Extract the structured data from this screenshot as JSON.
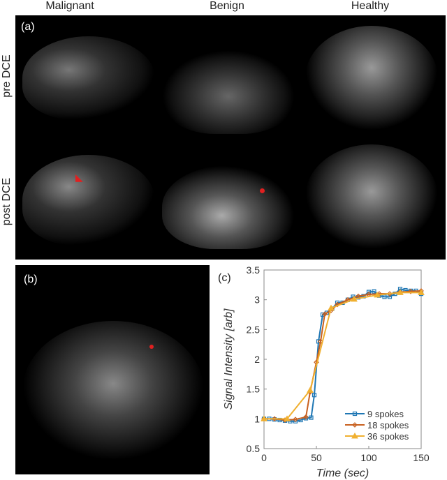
{
  "columns": [
    "Malignant",
    "Benign",
    "Healthy"
  ],
  "rows": [
    "pre DCE",
    "post DCE"
  ],
  "panels": {
    "a": "(a)",
    "b": "(b)",
    "c": "(c)"
  },
  "chart_data": {
    "type": "line",
    "title": "",
    "xlabel": "Time (sec)",
    "ylabel": "Signal Intensity [arb]",
    "xlim": [
      0,
      150
    ],
    "ylim": [
      0.5,
      3.5
    ],
    "xticks": [
      0,
      50,
      100,
      150
    ],
    "yticks": [
      0.5,
      1,
      1.5,
      2,
      2.5,
      3,
      3.5
    ],
    "legend_position": "bottom-right",
    "series": [
      {
        "name": "9 spokes",
        "color": "#1f77b4",
        "marker": "square",
        "x": [
          0,
          5,
          10,
          15,
          20,
          25,
          30,
          35,
          40,
          45,
          48,
          52,
          56,
          60,
          65,
          70,
          75,
          80,
          85,
          90,
          95,
          100,
          105,
          110,
          115,
          120,
          125,
          130,
          135,
          140,
          145,
          150
        ],
        "y": [
          1.0,
          1.0,
          0.99,
          0.98,
          0.97,
          0.96,
          0.96,
          0.98,
          1.01,
          1.02,
          1.4,
          2.3,
          2.75,
          2.78,
          2.85,
          2.95,
          2.95,
          3.0,
          3.05,
          3.04,
          3.06,
          3.13,
          3.14,
          3.07,
          3.05,
          3.05,
          3.1,
          3.18,
          3.16,
          3.15,
          3.15,
          3.1
        ]
      },
      {
        "name": "18 spokes",
        "color": "#c8601f",
        "marker": "diamond",
        "x": [
          0,
          10,
          20,
          30,
          40,
          44,
          50,
          54,
          58,
          64,
          70,
          80,
          90,
          100,
          110,
          120,
          130,
          140,
          150
        ],
        "y": [
          1.0,
          1.0,
          0.98,
          0.99,
          1.03,
          1.45,
          1.95,
          2.3,
          2.76,
          2.82,
          2.92,
          3.0,
          3.06,
          3.09,
          3.1,
          3.1,
          3.13,
          3.14,
          3.15
        ]
      },
      {
        "name": "36 spokes",
        "color": "#f0b030",
        "marker": "triangle",
        "x": [
          0,
          22,
          44,
          64,
          86,
          108,
          130,
          150
        ],
        "y": [
          1.0,
          1.0,
          1.48,
          2.86,
          3.01,
          3.08,
          3.12,
          3.12
        ]
      }
    ]
  }
}
